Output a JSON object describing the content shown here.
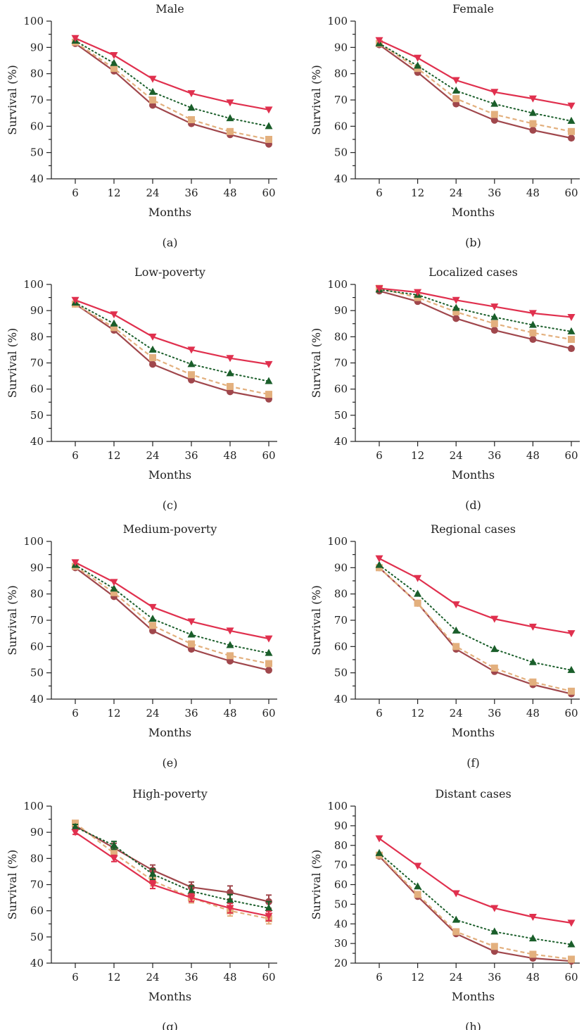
{
  "series_styles": [
    {
      "color": "#e0304e",
      "marker": "triangle-down",
      "dash": "solid"
    },
    {
      "color": "#1a5e2a",
      "marker": "triangle-up",
      "dash": "dotted"
    },
    {
      "color": "#e3b07e",
      "marker": "square",
      "dash": "dashed"
    },
    {
      "color": "#a0474c",
      "marker": "circle",
      "dash": "solid"
    }
  ],
  "chart_data": [
    {
      "type": "line",
      "caption": "(a)",
      "title": "Male",
      "xlabel": "Months",
      "ylabel": "Survival (%)",
      "categories": [
        "6",
        "12",
        "24",
        "36",
        "48",
        "60"
      ],
      "ylim": [
        40,
        100
      ],
      "yticks": [
        40,
        50,
        60,
        70,
        80,
        90,
        100
      ],
      "series": [
        {
          "values": [
            93.5,
            87.0,
            78.0,
            72.5,
            69.0,
            66.3
          ]
        },
        {
          "values": [
            92.5,
            84.0,
            73.0,
            67.0,
            63.0,
            60.0
          ]
        },
        {
          "values": [
            92.0,
            82.0,
            70.0,
            62.5,
            58.0,
            55.0
          ]
        },
        {
          "values": [
            91.5,
            81.0,
            68.0,
            61.0,
            56.8,
            53.2
          ]
        }
      ]
    },
    {
      "type": "line",
      "caption": "(b)",
      "title": "Female",
      "xlabel": "Months",
      "ylabel": "Survival (%)",
      "categories": [
        "6",
        "12",
        "24",
        "36",
        "48",
        "60"
      ],
      "ylim": [
        40,
        100
      ],
      "yticks": [
        40,
        50,
        60,
        70,
        80,
        90,
        100
      ],
      "series": [
        {
          "values": [
            92.7,
            86.0,
            77.5,
            73.0,
            70.5,
            67.8
          ]
        },
        {
          "values": [
            91.5,
            83.0,
            73.5,
            68.5,
            65.0,
            62.0
          ]
        },
        {
          "values": [
            91.5,
            82.0,
            70.5,
            64.5,
            61.0,
            58.0
          ]
        },
        {
          "values": [
            91.0,
            80.5,
            68.5,
            62.3,
            58.5,
            55.5
          ]
        }
      ]
    },
    {
      "type": "line",
      "caption": "(c)",
      "title": "Low-poverty",
      "xlabel": "Months",
      "ylabel": "Survival (%)",
      "categories": [
        "6",
        "12",
        "24",
        "36",
        "48",
        "60"
      ],
      "ylim": [
        40,
        100
      ],
      "yticks": [
        40,
        50,
        60,
        70,
        80,
        90,
        100
      ],
      "series": [
        {
          "values": [
            94.0,
            88.5,
            80.0,
            75.0,
            71.8,
            69.5
          ]
        },
        {
          "values": [
            93.0,
            85.0,
            75.0,
            69.5,
            66.0,
            63.0
          ]
        },
        {
          "values": [
            92.5,
            83.5,
            72.0,
            65.5,
            61.0,
            58.0
          ]
        },
        {
          "values": [
            92.5,
            82.5,
            69.5,
            63.5,
            59.0,
            56.2
          ]
        }
      ]
    },
    {
      "type": "line",
      "caption": "(d)",
      "title": "Localized cases",
      "xlabel": "Months",
      "ylabel": "Survival (%)",
      "categories": [
        "6",
        "12",
        "24",
        "36",
        "48",
        "60"
      ],
      "ylim": [
        40,
        100
      ],
      "yticks": [
        40,
        50,
        60,
        70,
        80,
        90,
        100
      ],
      "series": [
        {
          "values": [
            98.5,
            97.0,
            94.0,
            91.5,
            89.0,
            87.5
          ]
        },
        {
          "values": [
            98.0,
            96.0,
            91.0,
            87.5,
            84.5,
            82.0
          ]
        },
        {
          "values": [
            98.5,
            95.0,
            89.5,
            85.0,
            81.5,
            79.0
          ]
        },
        {
          "values": [
            97.5,
            93.5,
            87.0,
            82.5,
            79.0,
            75.5
          ]
        }
      ]
    },
    {
      "type": "line",
      "caption": "(e)",
      "title": "Medium-poverty",
      "xlabel": "Months",
      "ylabel": "Survival (%)",
      "categories": [
        "6",
        "12",
        "24",
        "36",
        "48",
        "60"
      ],
      "ylim": [
        40,
        100
      ],
      "yticks": [
        40,
        50,
        60,
        70,
        80,
        90,
        100
      ],
      "series": [
        {
          "values": [
            92.0,
            84.5,
            75.0,
            69.5,
            66.0,
            63.0
          ]
        },
        {
          "values": [
            91.0,
            82.0,
            70.5,
            64.5,
            60.5,
            57.5
          ]
        },
        {
          "values": [
            90.5,
            80.5,
            68.0,
            61.0,
            56.5,
            53.5
          ]
        },
        {
          "values": [
            90.0,
            79.0,
            66.0,
            59.0,
            54.5,
            51.0
          ]
        }
      ]
    },
    {
      "type": "line",
      "caption": "(f)",
      "title": "Regional cases",
      "xlabel": "Months",
      "ylabel": "Survival (%)",
      "categories": [
        "6",
        "12",
        "24",
        "36",
        "48",
        "60"
      ],
      "ylim": [
        40,
        100
      ],
      "yticks": [
        40,
        50,
        60,
        70,
        80,
        90,
        100
      ],
      "series": [
        {
          "values": [
            93.5,
            86.0,
            76.0,
            70.5,
            67.5,
            65.0
          ]
        },
        {
          "values": [
            91.0,
            80.0,
            66.0,
            59.0,
            54.0,
            51.0
          ]
        },
        {
          "values": [
            90.0,
            76.5,
            60.0,
            51.8,
            46.5,
            43.0
          ]
        },
        {
          "values": [
            90.0,
            76.5,
            59.0,
            50.5,
            45.5,
            42.0
          ]
        }
      ]
    },
    {
      "type": "line",
      "caption": "(g)",
      "title": "High-poverty",
      "xlabel": "Months",
      "ylabel": "Survival (%)",
      "categories": [
        "6",
        "12",
        "24",
        "36",
        "48",
        "60"
      ],
      "ylim": [
        40,
        100
      ],
      "yticks": [
        40,
        50,
        60,
        70,
        80,
        90,
        100
      ],
      "series": [
        {
          "values": [
            90.0,
            80.0,
            70.0,
            65.0,
            61.0,
            58.0
          ],
          "err": [
            0.8,
            1.2,
            1.5,
            1.5,
            1.8,
            1.8
          ]
        },
        {
          "values": [
            92.0,
            85.0,
            74.0,
            67.5,
            64.0,
            61.0
          ],
          "err": [
            1.0,
            1.5,
            2.0,
            2.0,
            2.2,
            2.5
          ]
        },
        {
          "values": [
            93.5,
            82.0,
            71.5,
            65.0,
            60.0,
            57.0
          ],
          "err": [
            0.8,
            1.5,
            2.0,
            2.0,
            2.0,
            2.0
          ]
        },
        {
          "values": [
            92.5,
            84.0,
            75.5,
            69.0,
            67.0,
            63.5
          ],
          "err": [
            1.0,
            1.8,
            2.0,
            2.0,
            2.5,
            2.5
          ]
        }
      ]
    },
    {
      "type": "line",
      "caption": "(h)",
      "title": "Distant cases",
      "xlabel": "Months",
      "ylabel": "Survival (%)",
      "categories": [
        "6",
        "12",
        "24",
        "36",
        "48",
        "60"
      ],
      "ylim": [
        20,
        100
      ],
      "yticks": [
        20,
        30,
        40,
        50,
        60,
        70,
        80,
        90,
        100
      ],
      "series": [
        {
          "values": [
            83.5,
            69.5,
            55.5,
            48.0,
            43.5,
            40.5
          ]
        },
        {
          "values": [
            76.0,
            59.0,
            42.0,
            36.0,
            32.5,
            29.5
          ]
        },
        {
          "values": [
            75.0,
            55.0,
            36.0,
            28.5,
            24.5,
            22.0
          ]
        },
        {
          "values": [
            74.5,
            54.0,
            35.0,
            26.0,
            22.5,
            21.0
          ]
        }
      ]
    }
  ]
}
